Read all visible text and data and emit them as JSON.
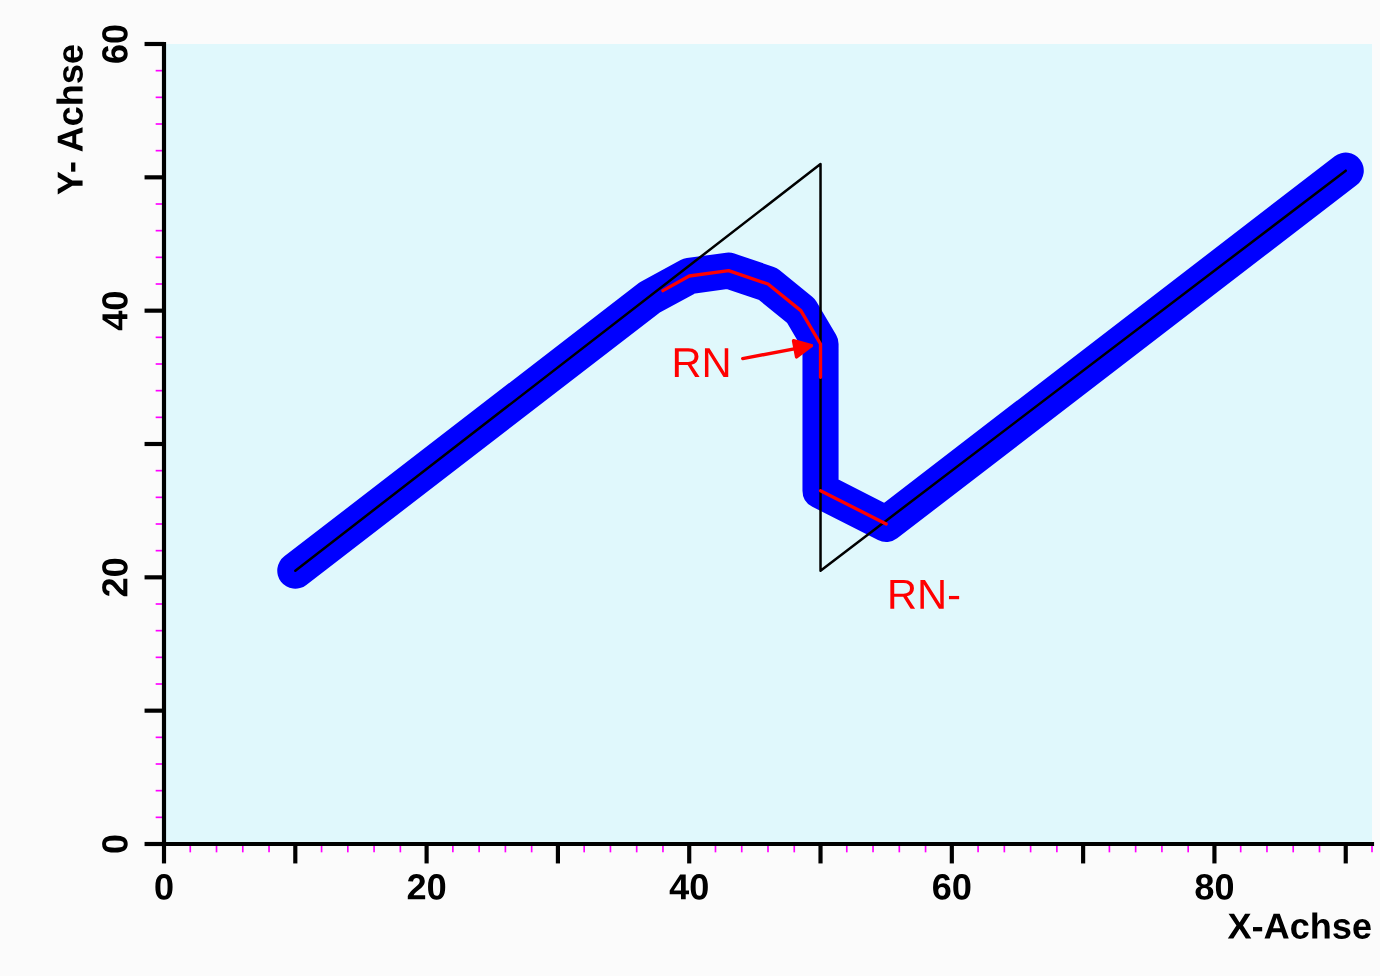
{
  "chart_data": {
    "type": "line",
    "xlabel": "X-Achse",
    "ylabel": "Y- Achse",
    "series": [
      {
        "color": "#0000ff",
        "x": [
          10,
          37,
          40,
          43,
          46,
          48.5,
          50,
          50,
          55,
          90
        ],
        "values": [
          20.5,
          41,
          42.6,
          43,
          42,
          40,
          37.5,
          26.5,
          24,
          50.5
        ]
      },
      {
        "color": "#000000",
        "x": [
          10,
          50,
          50,
          90
        ],
        "values": [
          20.5,
          51,
          20.5,
          50.5
        ]
      },
      {
        "color": "#ff0000",
        "x": [
          38,
          40,
          43,
          46,
          48.5,
          50,
          50
        ],
        "values": [
          41.5,
          42.6,
          43,
          42,
          40,
          37.5,
          35
        ]
      },
      {
        "color": "#ff0000",
        "x": [
          50,
          55
        ],
        "values": [
          26.5,
          24
        ]
      }
    ],
    "annotations": [
      {
        "text": "RN",
        "x": 50,
        "y": 37.5
      },
      {
        "text": "RN-",
        "x": 54,
        "y": 24.5
      }
    ],
    "xlim": [
      0,
      92
    ],
    "ylim": [
      0,
      60
    ],
    "xticks": [
      0,
      {
        "value": 10,
        "label": null
      },
      20,
      {
        "value": 30,
        "label": null
      },
      40,
      {
        "value": 50,
        "label": null
      },
      60,
      {
        "value": 70,
        "label": null
      },
      80,
      {
        "value": 90,
        "label": null
      }
    ],
    "yticks": [
      0,
      {
        "value": 10,
        "label": null
      },
      20,
      {
        "value": 30,
        "label": null
      },
      40,
      {
        "value": 50,
        "label": null
      },
      60
    ],
    "grid": false,
    "marker": "none",
    "line_style": "solid"
  }
}
